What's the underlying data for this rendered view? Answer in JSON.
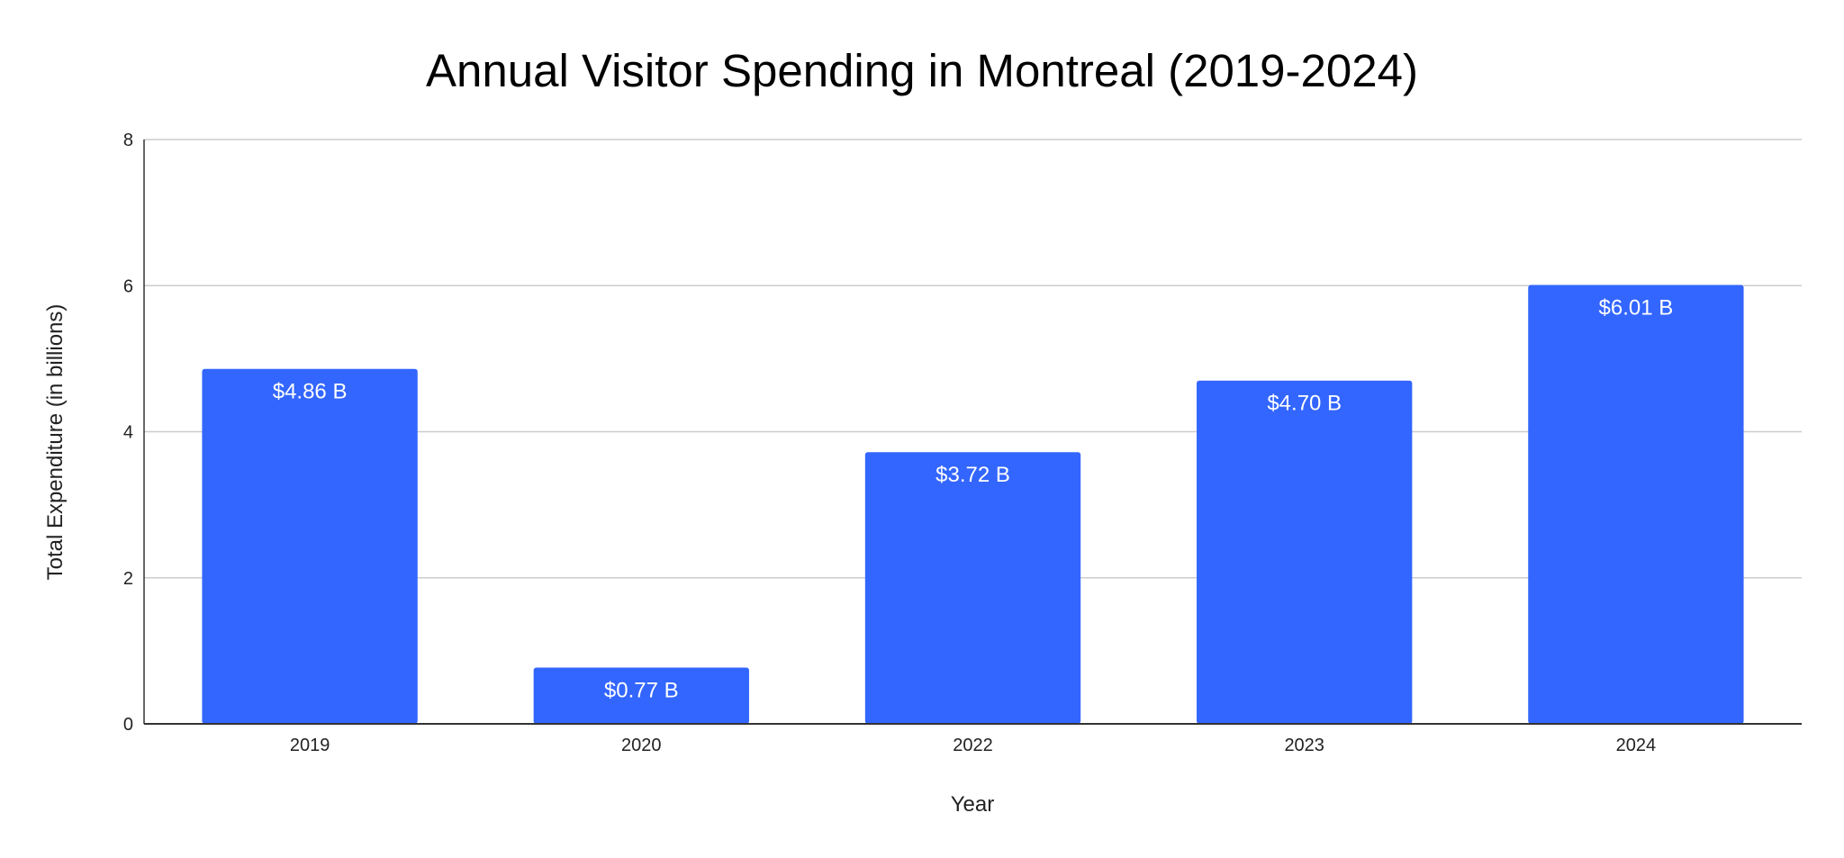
{
  "chart_data": {
    "type": "bar",
    "title": "Annual Visitor Spending in Montreal (2019-2024)",
    "xlabel": "Year",
    "ylabel": "Total Expenditure (in billions)",
    "categories": [
      "2019",
      "2020",
      "2022",
      "2023",
      "2024"
    ],
    "values": [
      4.86,
      0.77,
      3.72,
      4.7,
      6.01
    ],
    "data_labels": [
      "$4.86 B",
      "$0.77 B",
      "$3.72 B",
      "$4.70 B",
      "$6.01 B"
    ],
    "ylim": [
      0,
      8
    ],
    "yticks": [
      0,
      2,
      4,
      6,
      8
    ],
    "ytick_labels": [
      "0",
      "2",
      "4",
      "6",
      "8"
    ],
    "grid": true,
    "legend": "none",
    "colors": {
      "bar": "#3366ff",
      "grid": "#cccccc",
      "axis": "#333333"
    }
  }
}
